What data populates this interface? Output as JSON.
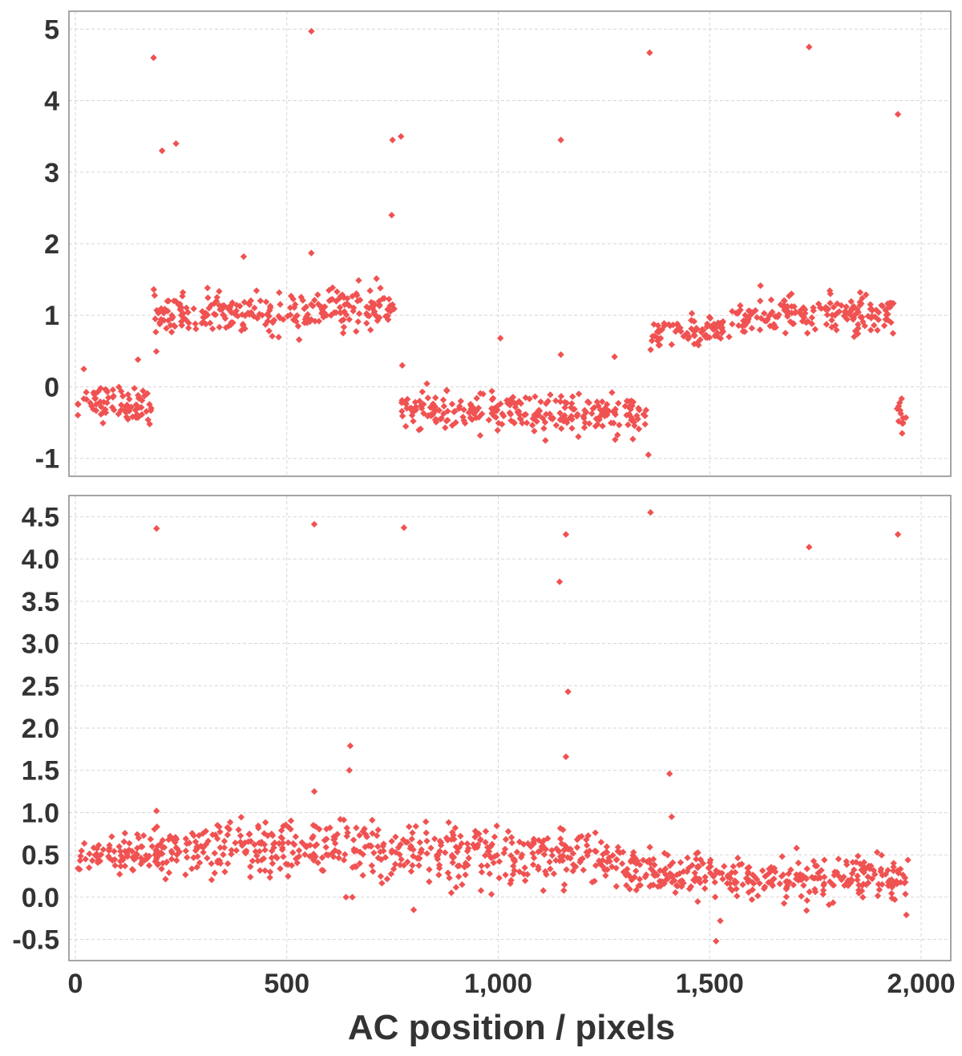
{
  "chart_data": [
    {
      "type": "scatter",
      "panel": "top",
      "xlim": [
        0,
        2070
      ],
      "ylim": [
        -1.25,
        5.25
      ],
      "y_ticks": [
        -1,
        0,
        1,
        2,
        3,
        4,
        5
      ],
      "y_tick_labels": [
        "-1",
        "0",
        "1",
        "2",
        "3",
        "4",
        "5"
      ],
      "x_ticks": [
        0,
        500,
        1000,
        1500,
        2000
      ],
      "grid": true,
      "marker": "diamond",
      "color": "#f05252",
      "segments": [
        {
          "x_start": 5,
          "x_end": 180,
          "mean_start": -0.2,
          "mean_end": -0.25,
          "spread": 0.12
        },
        {
          "x_start": 185,
          "x_end": 755,
          "mean_start": 0.98,
          "mean_end": 1.12,
          "spread": 0.14
        },
        {
          "x_start": 770,
          "x_end": 1350,
          "mean_start": -0.35,
          "mean_end": -0.4,
          "spread": 0.13
        },
        {
          "x_start": 1360,
          "x_end": 1550,
          "mean_start": 0.7,
          "mean_end": 0.85,
          "spread": 0.1
        },
        {
          "x_start": 1550,
          "x_end": 1935,
          "mean_start": 1.0,
          "mean_end": 1.02,
          "spread": 0.13
        },
        {
          "x_start": 1940,
          "x_end": 1965,
          "mean_start": -0.3,
          "mean_end": -0.4,
          "spread": 0.12
        }
      ],
      "outliers": [
        [
          185,
          4.6
        ],
        [
          205,
          3.3
        ],
        [
          238,
          3.4
        ],
        [
          558,
          4.97
        ],
        [
          750,
          3.45
        ],
        [
          770,
          3.5
        ],
        [
          748,
          2.4
        ],
        [
          1148,
          3.45
        ],
        [
          1358,
          4.67
        ],
        [
          1735,
          4.75
        ],
        [
          1945,
          3.81
        ],
        [
          398,
          1.82
        ],
        [
          558,
          1.87
        ],
        [
          1005,
          0.68
        ],
        [
          1148,
          0.45
        ],
        [
          1275,
          0.42
        ],
        [
          773,
          0.3
        ],
        [
          1355,
          -0.95
        ],
        [
          1955,
          -0.65
        ],
        [
          148,
          0.38
        ],
        [
          20,
          0.25
        ]
      ]
    },
    {
      "type": "scatter",
      "panel": "bottom",
      "xlim": [
        0,
        2070
      ],
      "ylim": [
        -0.75,
        4.75
      ],
      "y_ticks": [
        -0.5,
        0.0,
        0.5,
        1.0,
        1.5,
        2.0,
        2.5,
        3.0,
        3.5,
        4.0,
        4.5
      ],
      "y_tick_labels": [
        "-0.5",
        "0.0",
        "0.5",
        "1.0",
        "1.5",
        "2.0",
        "2.5",
        "3.0",
        "3.5",
        "4.0",
        "4.5"
      ],
      "x_ticks": [
        0,
        500,
        1000,
        1500,
        2000
      ],
      "x_tick_labels": [
        "0",
        "500",
        "1,000",
        "1,500",
        "2,000"
      ],
      "xlabel": "AC position / pixels",
      "grid": true,
      "marker": "diamond",
      "color": "#f05252",
      "segments": [
        {
          "x_start": 5,
          "x_end": 300,
          "mean_start": 0.45,
          "mean_end": 0.6,
          "spread": 0.12
        },
        {
          "x_start": 300,
          "x_end": 1150,
          "mean_start": 0.6,
          "mean_end": 0.45,
          "spread": 0.17
        },
        {
          "x_start": 1150,
          "x_end": 1300,
          "mean_start": 0.55,
          "mean_end": 0.4,
          "spread": 0.14
        },
        {
          "x_start": 1300,
          "x_end": 1970,
          "mean_start": 0.3,
          "mean_end": 0.18,
          "spread": 0.13
        }
      ],
      "outliers": [
        [
          192,
          4.36
        ],
        [
          565,
          4.41
        ],
        [
          777,
          4.37
        ],
        [
          1145,
          3.73
        ],
        [
          1160,
          4.29
        ],
        [
          1360,
          4.55
        ],
        [
          1735,
          4.14
        ],
        [
          1945,
          4.29
        ],
        [
          1165,
          2.43
        ],
        [
          1160,
          1.66
        ],
        [
          650,
          1.79
        ],
        [
          648,
          1.5
        ],
        [
          1405,
          1.46
        ],
        [
          1410,
          0.95
        ],
        [
          192,
          1.02
        ],
        [
          565,
          1.25
        ],
        [
          1515,
          -0.52
        ],
        [
          1525,
          -0.28
        ],
        [
          800,
          -0.15
        ],
        [
          1965,
          -0.21
        ],
        [
          640,
          0.0
        ],
        [
          655,
          0.0
        ]
      ]
    }
  ]
}
